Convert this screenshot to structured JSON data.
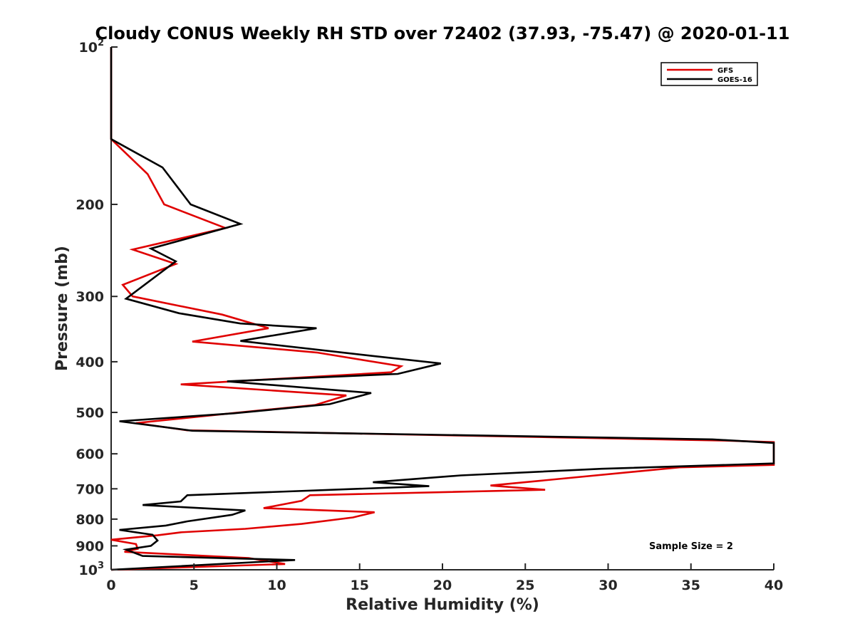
{
  "chart_data": {
    "type": "line",
    "title": "Cloudy CONUS Weekly RH STD over 72402 (37.93, -75.47) @ 2020-01-11",
    "xlabel": "Relative Humidity (%)",
    "ylabel": "Pressure (mb)",
    "xlim": [
      0,
      40
    ],
    "ylim": [
      100,
      1000
    ],
    "yscale": "log",
    "y_reversed": true,
    "x_ticks": [
      "0",
      "5",
      "10",
      "15",
      "20",
      "25",
      "30",
      "35",
      "40"
    ],
    "y_ticks": [
      {
        "value": 100,
        "base": "10",
        "exp": "2"
      },
      {
        "value": 200,
        "label": "200"
      },
      {
        "value": 300,
        "label": "300"
      },
      {
        "value": 400,
        "label": "400"
      },
      {
        "value": 500,
        "label": "500"
      },
      {
        "value": 600,
        "label": "600"
      },
      {
        "value": 700,
        "label": "700"
      },
      {
        "value": 800,
        "label": "800"
      },
      {
        "value": 900,
        "label": "900"
      },
      {
        "value": 1000,
        "base": "10",
        "exp": "3"
      }
    ],
    "grid": false,
    "legend_position": "top-right",
    "annotation": "Sample Size = 2",
    "series": [
      {
        "name": "GFS",
        "color": "#e00000",
        "points": [
          [
            0,
            100
          ],
          [
            0,
            150
          ],
          [
            2.2,
            175
          ],
          [
            3.2,
            200
          ],
          [
            6.9,
            222
          ],
          [
            1.3,
            244
          ],
          [
            3.9,
            260
          ],
          [
            0.7,
            285
          ],
          [
            1.3,
            300
          ],
          [
            6.7,
            325
          ],
          [
            9.5,
            345
          ],
          [
            4.9,
            366
          ],
          [
            12.4,
            384
          ],
          [
            17.5,
            408
          ],
          [
            16.9,
            419
          ],
          [
            4.2,
            442
          ],
          [
            14.2,
            464
          ],
          [
            12.3,
            484
          ],
          [
            7.5,
            501
          ],
          [
            1.5,
            524
          ],
          [
            4.6,
            541
          ],
          [
            37.0,
            566
          ],
          [
            40,
            570
          ],
          [
            40,
            630
          ],
          [
            34.3,
            637
          ],
          [
            22.9,
            690
          ],
          [
            26.2,
            703
          ],
          [
            12.0,
            720
          ],
          [
            11.5,
            738
          ],
          [
            9.2,
            762
          ],
          [
            15.9,
            776
          ],
          [
            14.6,
            794
          ],
          [
            11.5,
            817
          ],
          [
            8.1,
            835
          ],
          [
            4.2,
            848
          ],
          [
            2.8,
            859
          ],
          [
            0,
            876
          ],
          [
            1.5,
            893
          ],
          [
            1.6,
            912
          ],
          [
            0.8,
            924
          ],
          [
            8.3,
            950
          ],
          [
            10.5,
            975
          ],
          [
            0,
            1000
          ]
        ]
      },
      {
        "name": "GOES-16",
        "color": "#000000",
        "points": [
          [
            0,
            100
          ],
          [
            0,
            150
          ],
          [
            3.1,
            170
          ],
          [
            4.8,
            200
          ],
          [
            7.8,
            218
          ],
          [
            2.4,
            243
          ],
          [
            3.9,
            257
          ],
          [
            0.9,
            303
          ],
          [
            4.1,
            323
          ],
          [
            7.8,
            338
          ],
          [
            12.4,
            345
          ],
          [
            7.8,
            365
          ],
          [
            15.8,
            390
          ],
          [
            19.9,
            403
          ],
          [
            17.3,
            422
          ],
          [
            7.0,
            436
          ],
          [
            15.7,
            459
          ],
          [
            13.2,
            482
          ],
          [
            7.4,
            502
          ],
          [
            0.5,
            520
          ],
          [
            4.9,
            542
          ],
          [
            36.3,
            563
          ],
          [
            40,
            572
          ],
          [
            40,
            626
          ],
          [
            29.6,
            641
          ],
          [
            21.1,
            660
          ],
          [
            15.8,
            680
          ],
          [
            19.2,
            692
          ],
          [
            4.6,
            720
          ],
          [
            4.2,
            740
          ],
          [
            1.9,
            752
          ],
          [
            8.1,
            770
          ],
          [
            7.3,
            785
          ],
          [
            4.6,
            808
          ],
          [
            3.3,
            823
          ],
          [
            0.5,
            839
          ],
          [
            2.5,
            857
          ],
          [
            2.8,
            879
          ],
          [
            2.4,
            900
          ],
          [
            0.9,
            915
          ],
          [
            1.9,
            941
          ],
          [
            11.1,
            958
          ],
          [
            0,
            1000
          ]
        ]
      }
    ]
  }
}
